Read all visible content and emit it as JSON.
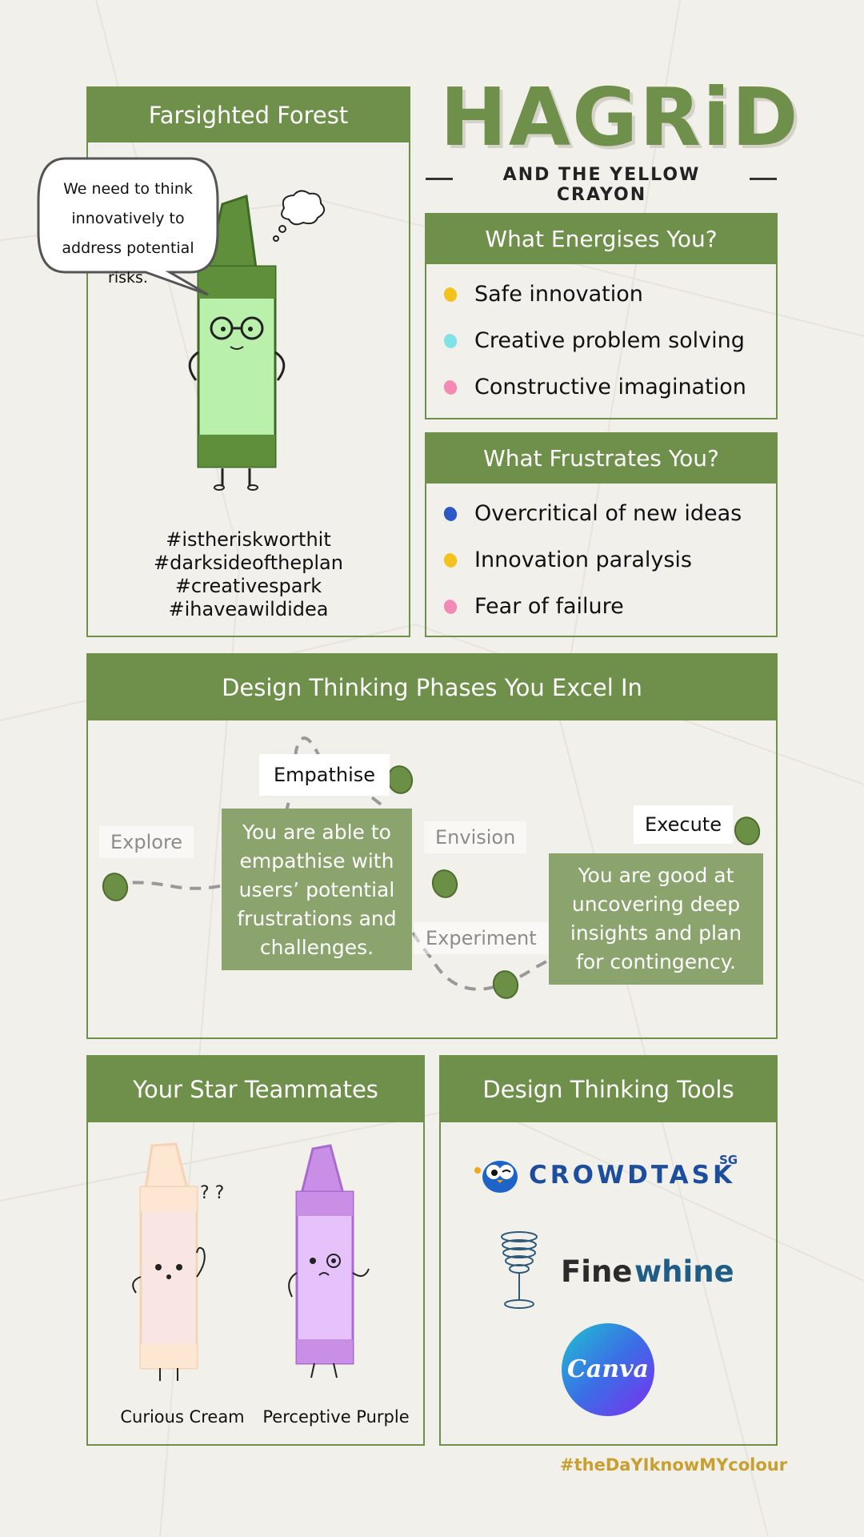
{
  "title": {
    "main": "HAGRiD",
    "sub": "AND THE YELLOW CRAYON"
  },
  "profile": {
    "header": "Farsighted Forest",
    "speech": "We need to think innovatively to address potential risks.",
    "hashtags": [
      "#istheriskworthit",
      "#darksideoftheplan",
      "#creativespark",
      "#ihaveawildidea"
    ]
  },
  "energises": {
    "header": "What Energises You?",
    "items": [
      {
        "label": "Safe innovation",
        "color": "#f3c21c"
      },
      {
        "label": "Creative problem solving",
        "color": "#7fe2e6"
      },
      {
        "label": "Constructive imagination",
        "color": "#f28ab4"
      }
    ]
  },
  "frustrates": {
    "header": "What Frustrates You?",
    "items": [
      {
        "label": "Overcritical of new ideas",
        "color": "#2c58c7"
      },
      {
        "label": "Innovation paralysis",
        "color": "#f3c21c"
      },
      {
        "label": "Fear of failure",
        "color": "#f28ab4"
      }
    ]
  },
  "phases": {
    "header": "Design Thinking Phases You Excel In",
    "labels": {
      "explore": "Explore",
      "empathise": "Empathise",
      "envision": "Envision",
      "experiment": "Experiment",
      "execute": "Execute"
    },
    "tip_empathise": "You are able to empathise with users’ potential frustrations and challenges.",
    "tip_execute": "You are good at uncovering deep insights and plan for contingency."
  },
  "teammates": {
    "header": "Your Star Teammates",
    "members": [
      {
        "name": "Curious Cream",
        "color": "#fde6d2"
      },
      {
        "name": "Perceptive Purple",
        "color": "#dcb6f5"
      }
    ]
  },
  "tools": {
    "header": "Design Thinking Tools",
    "crowdtask": {
      "name": "CROWDTASK",
      "suffix": "SG"
    },
    "finewhine": {
      "first": "Fine",
      "second": "whine"
    },
    "canva": "Canva"
  },
  "footer": {
    "hashtag": "#theDaYIknowMYcolour"
  },
  "colors": {
    "green": "#6f904a",
    "tip": "#8ba36d",
    "background": "#f2f0eb"
  }
}
